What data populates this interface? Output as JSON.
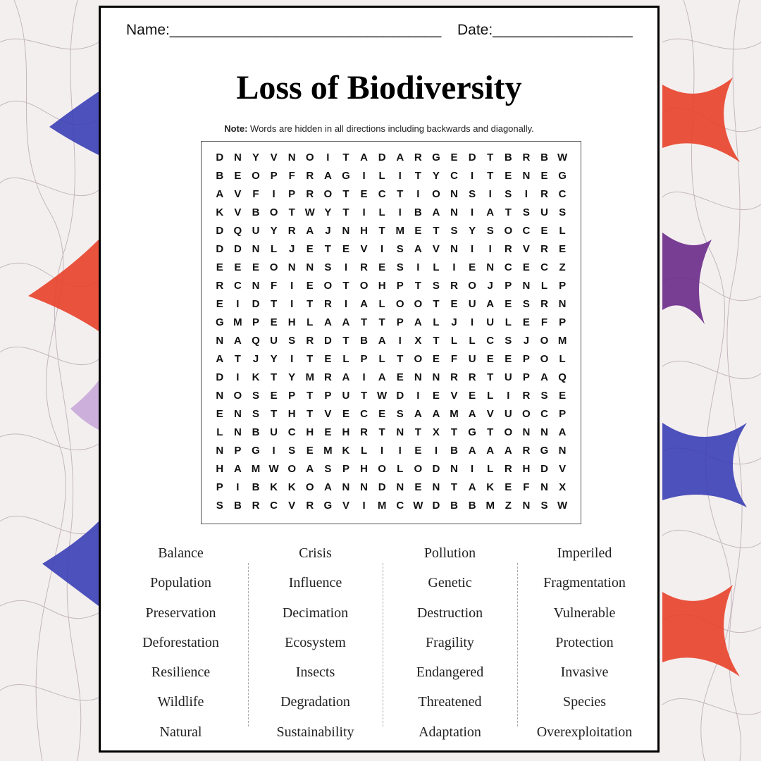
{
  "header": {
    "name_label": "Name:_________________________________",
    "date_label": "Date:_________________"
  },
  "title": "Loss of Biodiversity",
  "note": {
    "bold": "Note:",
    "text": " Words are hidden in all directions including backwards and diagonally."
  },
  "grid": [
    "DNYVNOITADARGEDTBRBW",
    "BEOPFRAGILITYCITENEG",
    "AVFIPROTECTIONSISIRC",
    "KVBOTWYTILIBANIATSUS",
    "DQUYRAJNHTMETSYSOCEL",
    "DDNLJETEVISAVNIIRVRE",
    "EEEONNSIRESILIENCECZ",
    "RCNFIEOTOHPTSROJPNLP",
    "EIDTITRIALOOTEUAESRN",
    "GMPEHLAATTPALJIULEFP",
    "NAQUSRDTBAIXTLLCSJOM",
    "ATJYITELPLTOEFUEEPOL",
    "DIKTYMRAIAENNRRTUPAQ",
    "NOSEPTPUTWDIEVELIRSE",
    "ENSTHTVECESAAMAVUOCP",
    "LNBUCHEHRTNTXTGTONNA",
    "NPGISEMKLIIEIBAAARGN",
    "HAMWOASPHOLODNILRHDV",
    "PIBKKOANNDNENTAKEFNX",
    "SBRCVRGVIMCWDBBMZNSW"
  ],
  "word_columns": [
    [
      "Balance",
      "Population",
      "Preservation",
      "Deforestation",
      "Resilience",
      "Wildlife",
      "Natural"
    ],
    [
      "Crisis",
      "Influence",
      "Decimation",
      "Ecosystem",
      "Insects",
      "Degradation",
      "Sustainability"
    ],
    [
      "Pollution",
      "Genetic",
      "Destruction",
      "Fragility",
      "Endangered",
      "Threatened",
      "Adaptation"
    ],
    [
      "Imperiled",
      "Fragmentation",
      "Vulnerable",
      "Protection",
      "Invasive",
      "Species",
      "Overexploitation"
    ]
  ],
  "colors": {
    "accent_red": "#e8412a",
    "accent_blue": "#3b3fb5",
    "accent_purple": "#6a2a8a"
  }
}
